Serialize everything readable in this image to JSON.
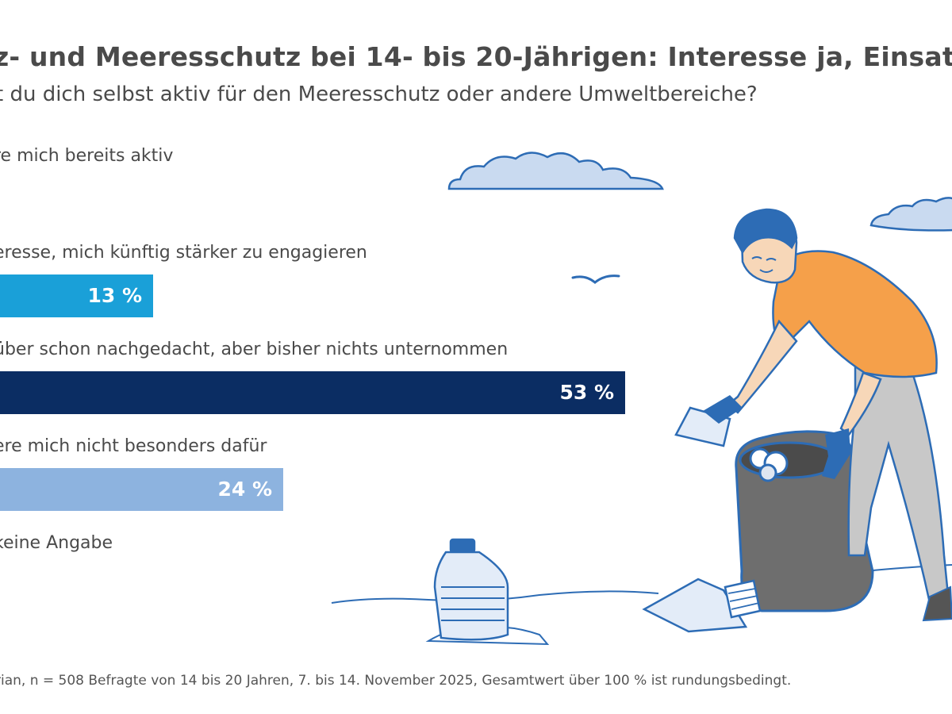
{
  "title": "z- und Meeresschutz bei 14- bis 20-Jährigen: Interesse ja, Einsat",
  "subtitle": "t du dich selbst aktiv für den Meeresschutz oder andere Umweltbereiche?",
  "chart_data": {
    "type": "bar",
    "orientation": "horizontal",
    "categories": [
      "re mich bereits aktiv",
      "eresse, mich künftig stärker zu engagieren",
      "über schon nachgedacht, aber bisher nichts unternommen",
      "ere mich nicht besonders dafür",
      "keine Angabe"
    ],
    "values": [
      null,
      13,
      53,
      24,
      null
    ],
    "value_labels": [
      "",
      "13 %",
      "53 %",
      "24 %",
      ""
    ],
    "colors": [
      "#1aa0d8",
      "#1aa0d8",
      "#0b2d63",
      "#8db3df",
      "#8db3df"
    ],
    "unit": "%",
    "xlim": [
      0,
      100
    ]
  },
  "source_note": "rian, n = 508 Befragte von 14 bis 20 Jahren, 7. bis 14. November 2025, Gesamtwert über 100 % ist rundungsbedingt.",
  "colors": {
    "text": "#4a4a4a",
    "illustration_line": "#2d6cb5",
    "shirt": "#f5a04a",
    "bag": "#6e6e6e"
  }
}
